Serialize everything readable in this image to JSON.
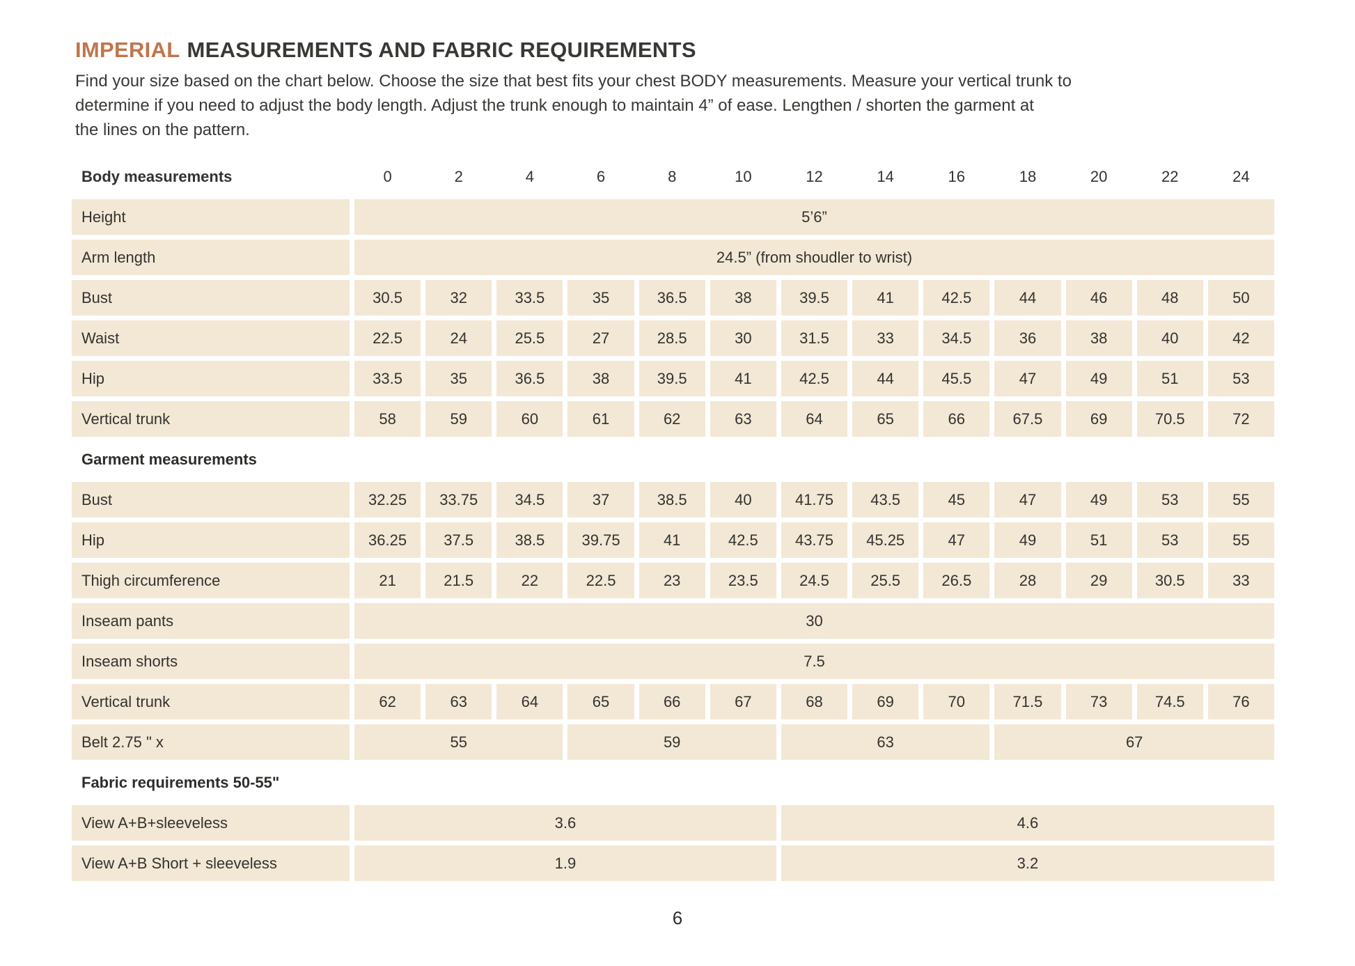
{
  "doc": {
    "title_accent": "IMPERIAL",
    "title_rest": "MEASUREMENTS AND FABRIC REQUIREMENTS",
    "intro_lines": [
      "Find your size based on the chart below. Choose the size that best fits your chest BODY measurements. Measure your vertical trunk to",
      "determine if you need to adjust the body length. Adjust the trunk enough to maintain 4” of ease. Lengthen / shorten the garment at",
      "the lines on the pattern."
    ],
    "page_number": "6"
  },
  "colors": {
    "accent": "#c1754c",
    "cell_background": "#f2e8d5",
    "text": "#34322f"
  },
  "table": {
    "header_label": "Body measurements",
    "sizes": [
      "0",
      "2",
      "4",
      "6",
      "8",
      "10",
      "12",
      "14",
      "16",
      "18",
      "20",
      "22",
      "24"
    ],
    "rows": [
      {
        "type": "span",
        "label": "Height",
        "value": "5’6”"
      },
      {
        "type": "span",
        "label": "Arm length",
        "value": "24.5” (from shoudler to wrist)"
      },
      {
        "type": "cells",
        "label": "Bust",
        "values": [
          "30.5",
          "32",
          "33.5",
          "35",
          "36.5",
          "38",
          "39.5",
          "41",
          "42.5",
          "44",
          "46",
          "48",
          "50"
        ]
      },
      {
        "type": "cells",
        "label": "Waist",
        "values": [
          "22.5",
          "24",
          "25.5",
          "27",
          "28.5",
          "30",
          "31.5",
          "33",
          "34.5",
          "36",
          "38",
          "40",
          "42"
        ]
      },
      {
        "type": "cells",
        "label": "Hip",
        "values": [
          "33.5",
          "35",
          "36.5",
          "38",
          "39.5",
          "41",
          "42.5",
          "44",
          "45.5",
          "47",
          "49",
          "51",
          "53"
        ]
      },
      {
        "type": "cells",
        "label": "Vertical trunk",
        "values": [
          "58",
          "59",
          "60",
          "61",
          "62",
          "63",
          "64",
          "65",
          "66",
          "67.5",
          "69",
          "70.5",
          "72"
        ]
      },
      {
        "type": "heading",
        "label": "Garment measurements"
      },
      {
        "type": "cells",
        "label": "Bust",
        "values": [
          "32.25",
          "33.75",
          "34.5",
          "37",
          "38.5",
          "40",
          "41.75",
          "43.5",
          "45",
          "47",
          "49",
          "53",
          "55"
        ]
      },
      {
        "type": "cells",
        "label": "Hip",
        "values": [
          "36.25",
          "37.5",
          "38.5",
          "39.75",
          "41",
          "42.5",
          "43.75",
          "45.25",
          "47",
          "49",
          "51",
          "53",
          "55"
        ]
      },
      {
        "type": "cells",
        "label": "Thigh circumference",
        "values": [
          "21",
          "21.5",
          "22",
          "22.5",
          "23",
          "23.5",
          "24.5",
          "25.5",
          "26.5",
          "28",
          "29",
          "30.5",
          "33"
        ]
      },
      {
        "type": "span",
        "label": "Inseam pants",
        "value": "30"
      },
      {
        "type": "span",
        "label": "Inseam shorts",
        "value": "7.5"
      },
      {
        "type": "cells",
        "label": "Vertical trunk",
        "values": [
          "62",
          "63",
          "64",
          "65",
          "66",
          "67",
          "68",
          "69",
          "70",
          "71.5",
          "73",
          "74.5",
          "76"
        ]
      },
      {
        "type": "groups",
        "label": "Belt 2.75 \" x",
        "groups": [
          {
            "span": 3,
            "value": "55"
          },
          {
            "span": 3,
            "value": "59"
          },
          {
            "span": 3,
            "value": "63"
          },
          {
            "span": 4,
            "value": "67"
          }
        ]
      },
      {
        "type": "heading",
        "label": "Fabric requirements 50-55\""
      },
      {
        "type": "groups",
        "label": "View A+B+sleeveless",
        "groups": [
          {
            "span": 6,
            "value": "3.6"
          },
          {
            "span": 7,
            "value": "4.6"
          }
        ]
      },
      {
        "type": "groups",
        "label": "View A+B Short + sleeveless",
        "groups": [
          {
            "span": 6,
            "value": "1.9"
          },
          {
            "span": 7,
            "value": "3.2"
          }
        ]
      }
    ]
  }
}
